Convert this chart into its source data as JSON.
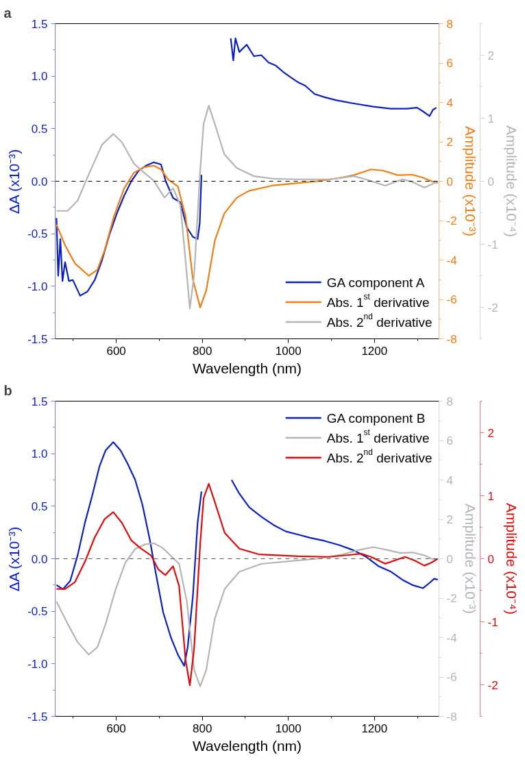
{
  "chart_data": [
    {
      "type": "line",
      "annotations": [
        "a"
      ],
      "xlabel": "Wavelength (nm)",
      "ylabel": "ΔA (x10⁻³)",
      "y2label": "Amplitude (x10⁻³)",
      "y3label": "Amplitude (x10⁻⁴)",
      "xlim": [
        458,
        1350
      ],
      "xticks": [
        600,
        800,
        1000,
        1200
      ],
      "ylim": [
        -1.5,
        1.5
      ],
      "yticks": [
        -1.5,
        {
          "value": -1,
          "label": "-1.0"
        },
        -0.5,
        {
          "value": 0,
          "label": "0.0"
        },
        0.5,
        {
          "value": 1,
          "label": "1.0"
        },
        1.5
      ],
      "y2lim": [
        -8,
        8
      ],
      "y2ticks": [
        -8,
        -6,
        -4,
        -2,
        0,
        2,
        4,
        6,
        8
      ],
      "y3lim": [
        -2.5,
        2.5
      ],
      "y3ticks": [
        -2,
        -1,
        0,
        1,
        2
      ],
      "grid": false,
      "legend": "bottom right",
      "line_style": "solid",
      "ref_lines": [
        {
          "axis": "y",
          "value": 0,
          "color": "#000000",
          "line_style": "dashed"
        }
      ],
      "series": [
        {
          "name": "GA component A",
          "color": "#0a1fbf",
          "axis": "y",
          "x": [
            461,
            465,
            470,
            475,
            481,
            490,
            499,
            516,
            533,
            550,
            567,
            584,
            601,
            618,
            635,
            652,
            670,
            687,
            704,
            715,
            732,
            749,
            764,
            778,
            789,
            794,
            798,
            830,
            866,
            872,
            877,
            886,
            903,
            920,
            937,
            954,
            971,
            988,
            1005,
            1023,
            1039,
            1061,
            1084,
            1112,
            1152,
            1197,
            1237,
            1276,
            1299,
            1311,
            1328,
            1336,
            1344
          ],
          "values": [
            -0.35,
            -0.9,
            -0.55,
            -0.95,
            -0.77,
            -0.95,
            -0.94,
            -1.09,
            -1.05,
            -0.94,
            -0.75,
            -0.51,
            -0.31,
            -0.14,
            0.0,
            0.1,
            0.15,
            0.18,
            0.16,
            0.0,
            -0.16,
            -0.2,
            -0.44,
            -0.53,
            -0.55,
            -0.4,
            0.06,
            null,
            1.36,
            1.15,
            1.36,
            1.23,
            1.3,
            1.19,
            1.2,
            1.13,
            1.1,
            1.04,
            0.99,
            0.94,
            0.91,
            0.83,
            0.8,
            0.77,
            0.74,
            0.71,
            0.69,
            0.69,
            0.7,
            0.67,
            0.62,
            0.68,
            0.7
          ]
        },
        {
          "name": "Abs. 1$^{st}$ derivative",
          "color": "#f07d14",
          "axis": "y2",
          "x": [
            461,
            481,
            504,
            536,
            556,
            573,
            595,
            618,
            641,
            664,
            687,
            704,
            721,
            743,
            761,
            778,
            795,
            809,
            829,
            851,
            880,
            908,
            965,
            1023,
            1067,
            1118,
            1152,
            1192,
            1220,
            1254,
            1288,
            1310,
            1333,
            1347
          ],
          "values": [
            -2.2,
            -3.25,
            -4.17,
            -4.8,
            -4.5,
            -3.5,
            -1.76,
            -0.38,
            0.43,
            0.71,
            0.79,
            0.6,
            0.08,
            -0.26,
            -1.76,
            -4.98,
            -6.41,
            -5.55,
            -3.02,
            -1.64,
            -0.84,
            -0.49,
            -0.21,
            -0.09,
            0.0,
            0.16,
            0.31,
            0.6,
            0.54,
            0.31,
            0.33,
            0.2,
            0.0,
            -0.09
          ]
        },
        {
          "name": "Abs. 2$^{nd}$ derivative",
          "color": "#b4b4b4",
          "axis": "y3",
          "x": [
            461,
            487,
            510,
            538,
            567,
            593,
            613,
            641,
            664,
            687,
            712,
            732,
            749,
            764,
            771,
            781,
            795,
            803,
            815,
            829,
            851,
            880,
            920,
            965,
            1023,
            1095,
            1152,
            1180,
            1225,
            1265,
            1288,
            1316,
            1333,
            1347
          ],
          "values": [
            -0.47,
            -0.47,
            -0.31,
            0.14,
            0.58,
            0.75,
            0.62,
            0.28,
            0.14,
            0.01,
            -0.26,
            -0.11,
            -0.38,
            -1.48,
            -2.02,
            -1.48,
            0.17,
            0.91,
            1.2,
            0.91,
            0.43,
            0.21,
            0.08,
            0.04,
            0.03,
            0.03,
            0.08,
            0.03,
            -0.07,
            0.03,
            -0.01,
            -0.1,
            -0.05,
            0.0
          ]
        }
      ]
    },
    {
      "type": "line",
      "annotations": [
        "b"
      ],
      "xlabel": "Wavelength (nm)",
      "ylabel": "ΔA (x10⁻³)",
      "y2label": "Amplitude (x10⁻³)",
      "y3label": "Amplitude (x10⁻⁴)",
      "xlim": [
        458,
        1350
      ],
      "xticks": [
        600,
        800,
        1000,
        1200
      ],
      "ylim": [
        -1.5,
        1.5
      ],
      "yticks": [
        -1.5,
        {
          "value": -1,
          "label": "-1.0"
        },
        -0.5,
        {
          "value": 0,
          "label": "0.0"
        },
        0.5,
        {
          "value": 1,
          "label": "1.0"
        },
        1.5
      ],
      "y2lim": [
        -8,
        8
      ],
      "y2ticks": [
        -8,
        -6,
        -4,
        -2,
        0,
        2,
        4,
        6,
        8
      ],
      "y3lim": [
        -2.5,
        2.5
      ],
      "y3ticks": [
        -2,
        -1,
        0,
        1,
        2
      ],
      "grid": false,
      "legend": "top right",
      "line_style": "solid",
      "ref_lines": [
        {
          "axis": "y",
          "value": 0,
          "color": "#555555",
          "line_style": "dashed"
        }
      ],
      "series": [
        {
          "name": "GA component B",
          "color": "#0a1fbf",
          "axis": "y",
          "x": [
            461,
            476,
            493,
            510,
            527,
            544,
            561,
            575,
            593,
            610,
            627,
            644,
            661,
            678,
            692,
            709,
            727,
            744,
            758,
            766,
            778,
            789,
            798,
            830,
            868,
            886,
            909,
            937,
            966,
            994,
            1023,
            1050,
            1084,
            1118,
            1152,
            1180,
            1209,
            1237,
            1265,
            1288,
            1313,
            1328,
            1339,
            1347
          ],
          "values": [
            -0.25,
            -0.29,
            -0.21,
            0.03,
            0.34,
            0.6,
            0.88,
            1.03,
            1.11,
            1.03,
            0.9,
            0.75,
            0.51,
            0.18,
            -0.14,
            -0.51,
            -0.75,
            -0.92,
            -1.02,
            -0.84,
            -0.36,
            0.34,
            0.64,
            null,
            0.75,
            0.62,
            0.49,
            0.4,
            0.32,
            0.26,
            0.23,
            0.2,
            0.17,
            0.13,
            0.08,
            0.02,
            -0.07,
            -0.12,
            -0.2,
            -0.25,
            -0.28,
            -0.23,
            -0.19,
            -0.2
          ]
        },
        {
          "name": "Abs. 1$^{st}$ derivative",
          "color": "#b4b4b4",
          "axis": "y2",
          "x": [
            461,
            487,
            510,
            536,
            556,
            575,
            598,
            621,
            644,
            667,
            687,
            707,
            727,
            746,
            764,
            781,
            795,
            809,
            829,
            852,
            886,
            937,
            1023,
            1067,
            1124,
            1163,
            1197,
            1231,
            1260,
            1288,
            1316,
            1333,
            1347
          ],
          "values": [
            -2.17,
            -3.3,
            -4.23,
            -4.87,
            -4.49,
            -3.33,
            -1.59,
            -0.2,
            0.5,
            0.73,
            0.79,
            0.56,
            0.15,
            -0.26,
            -2.17,
            -5.65,
            -6.48,
            -5.65,
            -3.04,
            -1.53,
            -0.66,
            -0.26,
            -0.08,
            0.0,
            0.21,
            0.44,
            0.59,
            0.44,
            0.29,
            0.32,
            0.17,
            0.0,
            -0.03
          ]
        },
        {
          "name": "Abs. 2$^{nd}$ derivative",
          "color": "#e00a0a",
          "axis": "y3",
          "x": [
            461,
            481,
            504,
            527,
            550,
            573,
            593,
            613,
            635,
            658,
            681,
            698,
            714,
            732,
            746,
            761,
            771,
            781,
            795,
            803,
            815,
            829,
            852,
            886,
            931,
            1023,
            1095,
            1141,
            1169,
            1192,
            1225,
            1271,
            1294,
            1316,
            1333,
            1347
          ],
          "values": [
            -0.48,
            -0.48,
            -0.37,
            -0.05,
            0.34,
            0.63,
            0.74,
            0.57,
            0.29,
            0.16,
            0.05,
            -0.17,
            -0.26,
            -0.12,
            -0.43,
            -1.6,
            -2.01,
            -1.42,
            0.23,
            0.96,
            1.19,
            0.9,
            0.41,
            0.16,
            0.07,
            0.04,
            0.03,
            0.06,
            0.08,
            0.03,
            -0.08,
            0.03,
            -0.03,
            -0.11,
            -0.06,
            0.0
          ]
        }
      ]
    }
  ]
}
